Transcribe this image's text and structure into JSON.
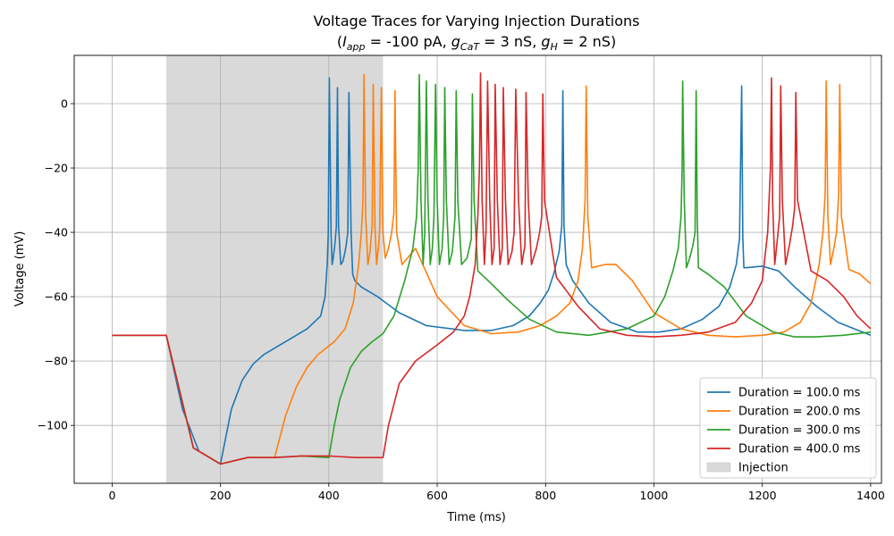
{
  "chart_data": {
    "type": "line",
    "title": "Voltage Traces for Varying Injection Durations",
    "subtitle": {
      "open": "(",
      "iapp_sym": "I",
      "iapp_sub": "app",
      "iapp_val": " = -100 pA, ",
      "gcat_sym": "g",
      "gcat_sub": "CaT",
      "gcat_val": " = 3 nS, ",
      "gh_sym": "g",
      "gh_sub": "H",
      "gh_val": " = 2 nS)"
    },
    "xlabel": "Time (ms)",
    "ylabel": "Voltage (mV)",
    "xlim": [
      -70,
      1420
    ],
    "ylim": [
      -118,
      15
    ],
    "xticks": [
      0,
      200,
      400,
      600,
      800,
      1000,
      1200,
      1400
    ],
    "yticks": [
      -100,
      -80,
      -60,
      -40,
      -20,
      0
    ],
    "ytick_labels": [
      "−100",
      "−80",
      "−60",
      "−40",
      "−20",
      "0"
    ],
    "grid": true,
    "legend_position": "lower-right",
    "injection": {
      "start": 100,
      "end": 500,
      "label": "Injection",
      "color": "#d9d9d9"
    },
    "series": [
      {
        "name": "Duration = 100.0 ms",
        "color": "#1f77b4",
        "x": [
          0,
          30,
          60,
          100,
          130,
          160,
          200,
          220,
          240,
          260,
          280,
          300,
          330,
          360,
          385,
          393,
          397,
          399,
          401,
          404,
          406,
          408,
          411,
          414,
          416,
          418,
          422,
          426,
          430,
          432,
          435,
          437,
          441,
          444,
          446,
          448,
          460,
          490,
          530,
          580,
          650,
          700,
          740,
          770,
          790,
          805,
          815,
          825,
          830,
          832,
          834,
          838,
          850,
          880,
          920,
          970,
          1010,
          1050,
          1090,
          1120,
          1140,
          1152,
          1158,
          1162,
          1164,
          1166,
          1170,
          1200,
          1230,
          1260,
          1300,
          1340,
          1370,
          1400
        ],
        "y": [
          -72,
          -72,
          -72,
          -72,
          -95,
          -108,
          -112,
          -95,
          -86,
          -81,
          -78,
          -76,
          -73,
          -70,
          -66,
          -60,
          -50,
          -40,
          8,
          -40,
          -50,
          -48,
          -44,
          -38,
          5,
          -38,
          -50,
          -49,
          -46,
          -44,
          -40,
          3.5,
          -40,
          -53,
          -54,
          -55,
          -57,
          -60,
          -65,
          -69,
          -70.5,
          -70.5,
          -69,
          -66,
          -62,
          -58,
          -53,
          -46,
          -38,
          4,
          -38,
          -50,
          -55,
          -62,
          -68,
          -71,
          -71,
          -70,
          -67,
          -63,
          -57,
          -50,
          -42,
          5.5,
          -42,
          -51,
          -51,
          -50.5,
          -52,
          -57,
          -63,
          -68,
          -70,
          -72
        ]
      },
      {
        "name": "Duration = 200.0 ms",
        "color": "#ff7f0e",
        "x": [
          0,
          100,
          150,
          200,
          250,
          300,
          320,
          340,
          360,
          380,
          410,
          430,
          445,
          455,
          460,
          463,
          465,
          468,
          472,
          476,
          480,
          482,
          485,
          488,
          492,
          494,
          497,
          500,
          504,
          510,
          516,
          520,
          522,
          525,
          535,
          560,
          600,
          650,
          700,
          750,
          790,
          820,
          845,
          860,
          868,
          873,
          875,
          878,
          885,
          910,
          930,
          960,
          1000,
          1050,
          1100,
          1150,
          1200,
          1240,
          1270,
          1290,
          1305,
          1312,
          1316,
          1318,
          1321,
          1326,
          1332,
          1337,
          1341,
          1343,
          1346,
          1360,
          1380,
          1400
        ],
        "y": [
          -72,
          -72,
          -107,
          -112,
          -110,
          -110,
          -97,
          -88,
          -82,
          -78,
          -74,
          -70,
          -62,
          -50,
          -40,
          -30,
          9,
          -35,
          -50,
          -46,
          -38,
          6,
          -38,
          -50,
          -44,
          -38,
          5,
          -40,
          -48,
          -45,
          -40,
          -34,
          4,
          -40,
          -50,
          -45,
          -60,
          -69,
          -71.5,
          -71,
          -69,
          -66,
          -62,
          -55,
          -45,
          -30,
          5.5,
          -35,
          -51,
          -50,
          -50,
          -55,
          -65,
          -70,
          -72,
          -72.5,
          -72,
          -71,
          -68,
          -62,
          -50,
          -40,
          -28,
          7,
          -35,
          -50,
          -45,
          -40,
          -28,
          6,
          -35,
          -51.5,
          -53,
          -56
        ]
      },
      {
        "name": "Duration = 300.0 ms",
        "color": "#2ca02c",
        "x": [
          0,
          100,
          150,
          200,
          250,
          300,
          350,
          400,
          410,
          420,
          440,
          460,
          480,
          500,
          520,
          540,
          555,
          562,
          565,
          567,
          570,
          574,
          577,
          580,
          583,
          587,
          591,
          594,
          597,
          600,
          604,
          609,
          612,
          614,
          617,
          622,
          628,
          633,
          635,
          638,
          645,
          655,
          663,
          665,
          668,
          675,
          700,
          730,
          770,
          820,
          880,
          950,
          1000,
          1020,
          1035,
          1045,
          1050,
          1052,
          1053,
          1056,
          1060,
          1066,
          1072,
          1076,
          1078,
          1080,
          1082,
          1100,
          1130,
          1170,
          1220,
          1260,
          1300,
          1350,
          1400
        ],
        "y": [
          -72,
          -72,
          -107,
          -112,
          -110,
          -110,
          -109.5,
          -110,
          -100,
          -92,
          -82,
          -77,
          -74,
          -71.5,
          -66,
          -55,
          -45,
          -35,
          -20,
          9,
          -30,
          -50,
          -40,
          7,
          -30,
          -50,
          -45,
          -35,
          6,
          -30,
          -50,
          -45,
          -35,
          5,
          -30,
          -50,
          -46,
          -35,
          4,
          -30,
          -50,
          -48,
          -42,
          3,
          -30,
          -52,
          -56,
          -61,
          -67,
          -71,
          -72,
          -70,
          -66,
          -60,
          -52,
          -45,
          -35,
          -20,
          7,
          -30,
          -51,
          -48,
          -44,
          -40,
          4,
          -35,
          -51,
          -53,
          -57,
          -66,
          -71,
          -72.5,
          -72.5,
          -72,
          -71
        ]
      },
      {
        "name": "Duration = 400.0 ms",
        "color": "#d62728",
        "x": [
          0,
          100,
          150,
          200,
          250,
          300,
          350,
          400,
          450,
          500,
          510,
          530,
          560,
          600,
          630,
          650,
          660,
          670,
          675,
          678,
          680,
          683,
          687,
          690,
          693,
          697,
          701,
          705,
          707,
          711,
          716,
          720,
          722,
          726,
          731,
          738,
          742,
          745,
          750,
          756,
          762,
          764,
          768,
          774,
          783,
          789,
          793,
          795,
          798,
          820,
          860,
          900,
          950,
          1000,
          1050,
          1100,
          1150,
          1180,
          1200,
          1210,
          1215,
          1217,
          1219,
          1223,
          1228,
          1232,
          1234,
          1237,
          1243,
          1250,
          1256,
          1260,
          1262,
          1265,
          1290,
          1320,
          1350,
          1375,
          1400
        ],
        "y": [
          -72,
          -72,
          -107,
          -112,
          -110,
          -110,
          -109.5,
          -109.5,
          -110,
          -110,
          -100,
          -87,
          -80,
          -75,
          -71,
          -66,
          -60,
          -50,
          -35,
          -20,
          9.5,
          -30,
          -50,
          -40,
          7,
          -30,
          -50,
          -45,
          6,
          -30,
          -50,
          -45,
          5,
          -30,
          -50,
          -46,
          -40,
          4.5,
          -30,
          -50,
          -44,
          3.5,
          -30,
          -50,
          -45,
          -40,
          -35,
          3,
          -30,
          -54,
          -63,
          -70,
          -72,
          -72.5,
          -72,
          -71,
          -68,
          -62,
          -55,
          -40,
          -20,
          8,
          -30,
          -50,
          -42,
          -35,
          5.5,
          -30,
          -50,
          -44,
          -38,
          -32,
          3.5,
          -30,
          -52,
          -55,
          -60,
          -66,
          -70
        ]
      }
    ]
  }
}
